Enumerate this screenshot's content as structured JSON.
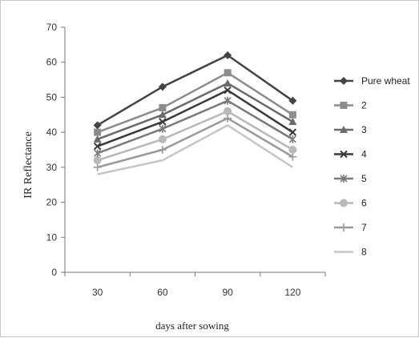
{
  "chart_data": {
    "type": "line",
    "title": "",
    "xlabel": "days after sowing",
    "ylabel": "IR Reflectance",
    "categories": [
      "30",
      "60",
      "90",
      "120"
    ],
    "yticks": [
      0,
      10,
      20,
      30,
      40,
      50,
      60,
      70
    ],
    "ylim": [
      0,
      70
    ],
    "grid": false,
    "legend_position": "right",
    "series": [
      {
        "name": "Pure wheat",
        "color": "#444444",
        "marker": "diamond",
        "values": [
          42,
          53,
          62,
          49
        ]
      },
      {
        "name": "2",
        "color": "#8c8c8c",
        "marker": "square",
        "values": [
          40,
          47,
          57,
          45
        ]
      },
      {
        "name": "3",
        "color": "#6a6a6a",
        "marker": "triangle",
        "values": [
          38,
          45,
          54,
          43
        ]
      },
      {
        "name": "4",
        "color": "#3a3a3a",
        "marker": "x",
        "values": [
          36,
          43,
          52,
          40
        ]
      },
      {
        "name": "5",
        "color": "#7a7a7a",
        "marker": "star",
        "values": [
          34,
          41,
          49,
          38
        ]
      },
      {
        "name": "6",
        "color": "#b8b8b8",
        "marker": "circle",
        "values": [
          32,
          38,
          46,
          35
        ]
      },
      {
        "name": "7",
        "color": "#999999",
        "marker": "plus",
        "values": [
          30,
          35,
          44,
          33
        ]
      },
      {
        "name": "8",
        "color": "#c6c6c6",
        "marker": "none",
        "values": [
          28,
          32,
          42,
          30
        ]
      }
    ]
  }
}
